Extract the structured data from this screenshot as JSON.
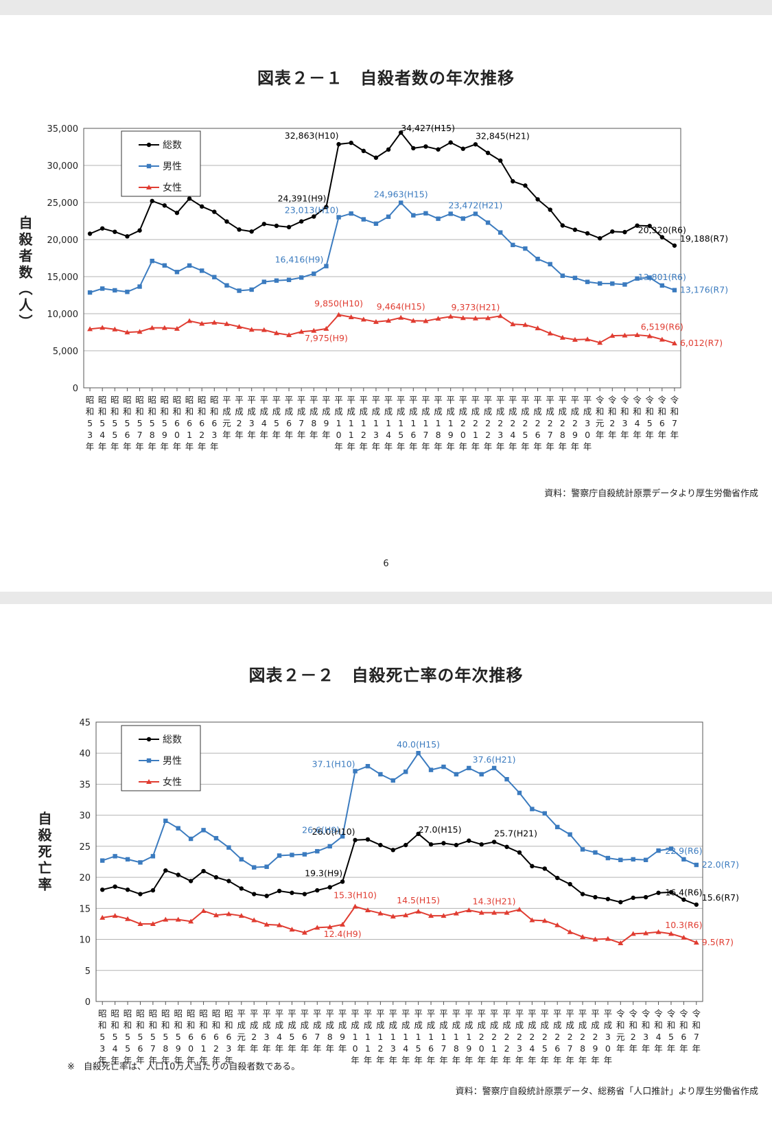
{
  "colors": {
    "total": "#000000",
    "male": "#3b7bbf",
    "female": "#e03c31",
    "grid": "#b3b3b3"
  },
  "page_number": "6",
  "chart1": {
    "title": "図表２－１　自殺者数の年次推移",
    "ylabel": "自殺者数（人）",
    "source": "資料：警察庁自殺統計原票データより厚生労働省作成",
    "y_ticks": [
      "0",
      "5,000",
      "10,000",
      "15,000",
      "20,000",
      "25,000",
      "30,000",
      "35,000"
    ],
    "legend": [
      "総数",
      "男性",
      "女性"
    ],
    "annotations": {
      "total": [
        {
          "index": 14,
          "text": "24,391(H9)"
        },
        {
          "index": 15,
          "text": "32,863(H10)"
        },
        {
          "index": 20,
          "text": "34,427(H15)"
        },
        {
          "index": 26,
          "text": "32,845(H21)"
        },
        {
          "index": 41,
          "text": "20,320(R6)"
        },
        {
          "index": 42,
          "text": "19,188(R7)"
        }
      ],
      "male": [
        {
          "index": 14,
          "text": "16,416(H9)"
        },
        {
          "index": 15,
          "text": "23,013(H10)"
        },
        {
          "index": 20,
          "text": "24,963(H15)"
        },
        {
          "index": 26,
          "text": "23,472(H21)"
        },
        {
          "index": 41,
          "text": "13,801(R6)"
        },
        {
          "index": 42,
          "text": "13,176(R7)"
        }
      ],
      "female": [
        {
          "index": 14,
          "text": "7,975(H9)"
        },
        {
          "index": 15,
          "text": "9,850(H10)"
        },
        {
          "index": 20,
          "text": "9,464(H15)"
        },
        {
          "index": 26,
          "text": "9,373(H21)"
        },
        {
          "index": 41,
          "text": "6,519(R6)"
        },
        {
          "index": 42,
          "text": "6,012(R7)"
        }
      ]
    }
  },
  "chart2": {
    "title": "図表２－２　自殺死亡率の年次推移",
    "ylabel": "自殺死亡率",
    "source": "資料：警察庁自殺統計原票データ、総務省「人口推計」より厚生労働省作成",
    "footnote": "※　自殺死亡率は、人口10万人当たりの自殺者数である。",
    "y_ticks": [
      "0",
      "5",
      "10",
      "15",
      "20",
      "25",
      "30",
      "35",
      "40",
      "45"
    ],
    "legend": [
      "総数",
      "男性",
      "女性"
    ],
    "annotations": {
      "total": [
        {
          "index": 14,
          "text": "19.3(H9)"
        },
        {
          "index": 15,
          "text": "26.0(H10)"
        },
        {
          "index": 20,
          "text": "27.0(H15)"
        },
        {
          "index": 26,
          "text": "25.7(H21)"
        },
        {
          "index": 41,
          "text": "16.4(R6)"
        },
        {
          "index": 42,
          "text": "15.6(R7)"
        }
      ],
      "male": [
        {
          "index": 14,
          "text": "26.6(H9)"
        },
        {
          "index": 15,
          "text": "37.1(H10)"
        },
        {
          "index": 20,
          "text": "40.0(H15)"
        },
        {
          "index": 26,
          "text": "37.6(H21)"
        },
        {
          "index": 41,
          "text": "22.9(R6)"
        },
        {
          "index": 42,
          "text": "22.0(R7)"
        }
      ],
      "female": [
        {
          "index": 14,
          "text": "12.4(H9)"
        },
        {
          "index": 15,
          "text": "15.3(H10)"
        },
        {
          "index": 20,
          "text": "14.5(H15)"
        },
        {
          "index": 26,
          "text": "14.3(H21)"
        },
        {
          "index": 41,
          "text": "10.3(R6)"
        },
        {
          "index": 42,
          "text": "9.5(R7)"
        }
      ]
    }
  },
  "chart_data": [
    {
      "type": "line",
      "title": "図表２－１　自殺者数の年次推移",
      "xlabel": "",
      "ylabel": "自殺者数（人）",
      "ylim": [
        0,
        35000
      ],
      "grid": true,
      "legend_position": "top-left",
      "categories": [
        "昭和53年",
        "昭和54年",
        "昭和55年",
        "昭和56年",
        "昭和57年",
        "昭和58年",
        "昭和59年",
        "昭和60年",
        "昭和61年",
        "昭和62年",
        "昭和63年",
        "平成元年",
        "平成2年",
        "平成3年",
        "平成4年",
        "平成5年",
        "平成6年",
        "平成7年",
        "平成8年",
        "平成9年",
        "平成10年",
        "平成11年",
        "平成12年",
        "平成13年",
        "平成14年",
        "平成15年",
        "平成16年",
        "平成17年",
        "平成18年",
        "平成19年",
        "平成20年",
        "平成21年",
        "平成22年",
        "平成23年",
        "平成24年",
        "平成25年",
        "平成26年",
        "平成27年",
        "平成28年",
        "平成29年",
        "平成30年",
        "令和元年",
        "令和2年",
        "令和3年",
        "令和4年",
        "令和5年",
        "令和6年",
        "令和7年"
      ],
      "series": [
        {
          "name": "総数",
          "values": [
            20788,
            21503,
            21048,
            20434,
            21228,
            25202,
            24596,
            23599,
            25524,
            24460,
            23742,
            22436,
            21346,
            21084,
            22104,
            21851,
            21679,
            22445,
            23104,
            24391,
            32863,
            33048,
            31957,
            31042,
            32143,
            34427,
            32325,
            32552,
            32155,
            33093,
            32249,
            32845,
            31690,
            30651,
            27858,
            27283,
            25427,
            24025,
            21897,
            21321,
            20840,
            20169,
            21081,
            21007,
            21881,
            21837,
            20320,
            19188
          ]
        },
        {
          "name": "男性",
          "values": [
            12859,
            13386,
            13155,
            12942,
            13654,
            17116,
            16508,
            15624,
            16497,
            15802,
            14934,
            13818,
            13102,
            13242,
            14296,
            14468,
            14560,
            14874,
            15393,
            16416,
            23013,
            23512,
            22727,
            22144,
            23080,
            24963,
            23272,
            23540,
            22813,
            23478,
            22831,
            23472,
            22283,
            20955,
            19273,
            18787,
            17386,
            16681,
            15121,
            14826,
            14290,
            14078,
            14055,
            13939,
            14746,
            14862,
            13801,
            13176
          ]
        },
        {
          "name": "女性",
          "values": [
            7929,
            8117,
            7893,
            7492,
            7574,
            8086,
            8088,
            7975,
            9027,
            8658,
            8808,
            8618,
            8244,
            7842,
            7808,
            7383,
            7119,
            7571,
            7711,
            7975,
            9850,
            9536,
            9230,
            8898,
            9063,
            9464,
            9053,
            9012,
            9342,
            9615,
            9418,
            9373,
            9407,
            9696,
            8585,
            8496,
            8041,
            7344,
            6776,
            6495,
            6550,
            6091,
            7026,
            7068,
            7135,
            6975,
            6519,
            6012
          ]
        }
      ]
    },
    {
      "type": "line",
      "title": "図表２－２　自殺死亡率の年次推移",
      "xlabel": "",
      "ylabel": "自殺死亡率",
      "ylim": [
        0,
        45
      ],
      "grid": true,
      "legend_position": "top-left",
      "categories": [
        "昭和53年",
        "昭和54年",
        "昭和55年",
        "昭和56年",
        "昭和57年",
        "昭和58年",
        "昭和59年",
        "昭和60年",
        "昭和61年",
        "昭和62年",
        "昭和63年",
        "平成元年",
        "平成2年",
        "平成3年",
        "平成4年",
        "平成5年",
        "平成6年",
        "平成7年",
        "平成8年",
        "平成9年",
        "平成10年",
        "平成11年",
        "平成12年",
        "平成13年",
        "平成14年",
        "平成15年",
        "平成16年",
        "平成17年",
        "平成18年",
        "平成19年",
        "平成20年",
        "平成21年",
        "平成22年",
        "平成23年",
        "平成24年",
        "平成25年",
        "平成26年",
        "平成27年",
        "平成28年",
        "平成29年",
        "平成30年",
        "令和元年",
        "令和2年",
        "令和3年",
        "令和4年",
        "令和5年",
        "令和6年",
        "令和7年"
      ],
      "series": [
        {
          "name": "総数",
          "values": [
            18.0,
            18.5,
            18.0,
            17.3,
            17.9,
            21.1,
            20.4,
            19.4,
            21.0,
            20.0,
            19.4,
            18.2,
            17.3,
            17.0,
            17.8,
            17.5,
            17.3,
            17.9,
            18.4,
            19.3,
            26.0,
            26.1,
            25.2,
            24.4,
            25.2,
            27.0,
            25.3,
            25.5,
            25.2,
            25.9,
            25.3,
            25.7,
            24.9,
            24.0,
            21.8,
            21.4,
            19.9,
            18.9,
            17.3,
            16.8,
            16.5,
            16.0,
            16.7,
            16.8,
            17.5,
            17.6,
            16.4,
            15.6
          ]
        },
        {
          "name": "男性",
          "values": [
            22.7,
            23.4,
            22.9,
            22.4,
            23.4,
            29.1,
            27.9,
            26.2,
            27.6,
            26.3,
            24.8,
            22.9,
            21.6,
            21.7,
            23.5,
            23.6,
            23.7,
            24.2,
            25.0,
            26.6,
            37.1,
            37.9,
            36.6,
            35.6,
            37.0,
            40.0,
            37.3,
            37.8,
            36.6,
            37.6,
            36.6,
            37.6,
            35.8,
            33.6,
            31.0,
            30.3,
            28.1,
            26.9,
            24.5,
            24.0,
            23.1,
            22.8,
            22.9,
            22.8,
            24.3,
            24.6,
            22.9,
            22.0
          ]
        },
        {
          "name": "女性",
          "values": [
            13.5,
            13.8,
            13.3,
            12.5,
            12.5,
            13.2,
            13.2,
            12.9,
            14.6,
            13.9,
            14.1,
            13.8,
            13.1,
            12.4,
            12.3,
            11.6,
            11.1,
            11.9,
            12.0,
            12.4,
            15.3,
            14.7,
            14.2,
            13.7,
            13.9,
            14.5,
            13.8,
            13.8,
            14.2,
            14.7,
            14.3,
            14.3,
            14.3,
            14.8,
            13.1,
            13.0,
            12.3,
            11.2,
            10.4,
            10.0,
            10.1,
            9.4,
            10.9,
            11.0,
            11.2,
            10.9,
            10.3,
            9.5
          ]
        }
      ]
    }
  ]
}
